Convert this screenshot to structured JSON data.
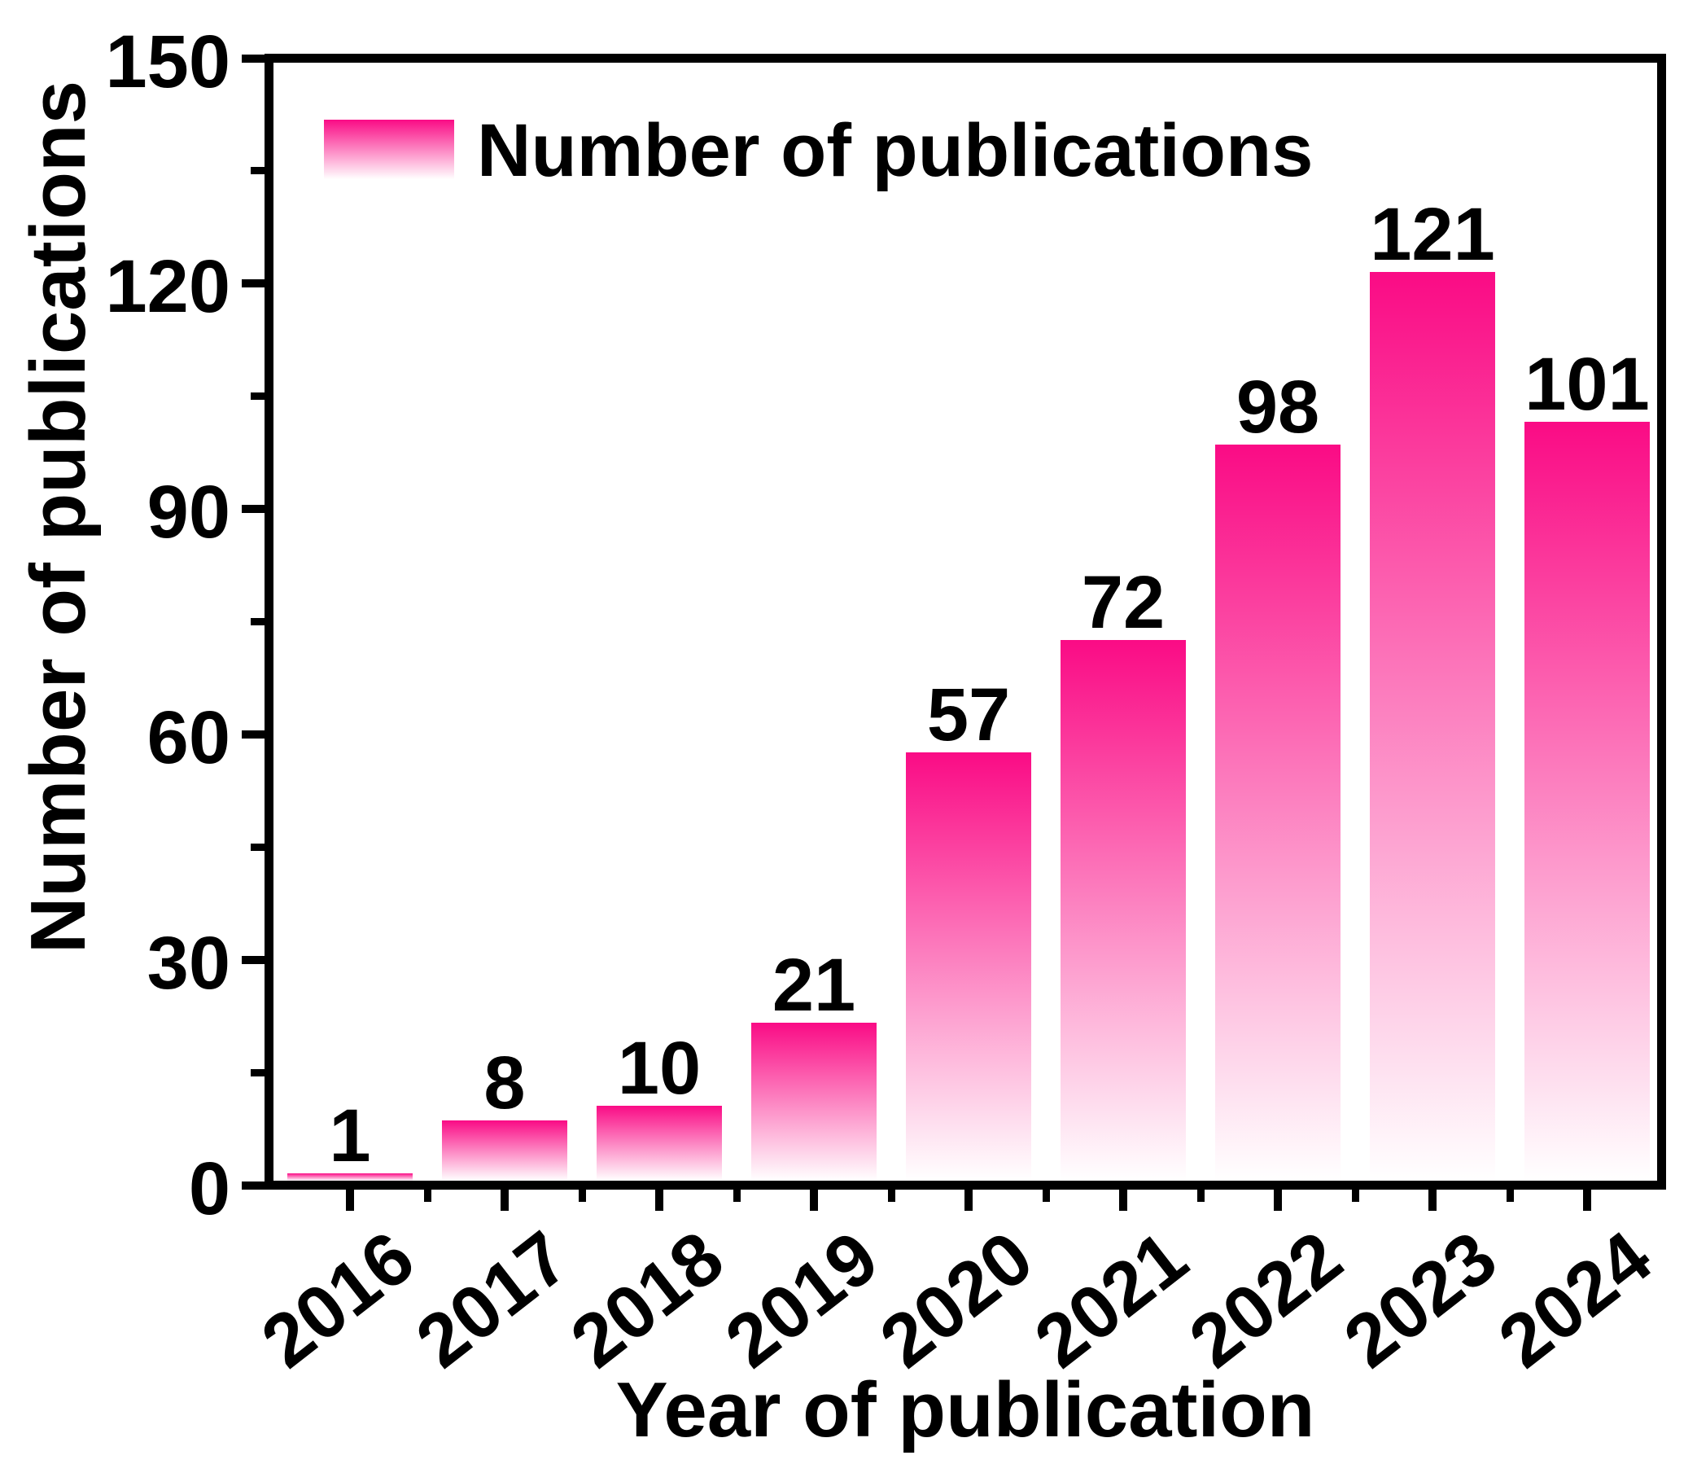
{
  "chart_data": {
    "type": "bar",
    "categories": [
      "2016",
      "2017",
      "2018",
      "2019",
      "2020",
      "2021",
      "2022",
      "2023",
      "2024"
    ],
    "values": [
      1,
      8,
      10,
      21,
      57,
      72,
      98,
      121,
      101
    ],
    "value_labels": [
      "1",
      "8",
      "10",
      "21",
      "57",
      "72",
      "98",
      "121",
      "101"
    ],
    "title": "",
    "xlabel": "Year of publication",
    "ylabel": "Number of publications",
    "ylim": [
      0,
      150
    ],
    "yticks": [
      0,
      30,
      60,
      90,
      120,
      150
    ],
    "ytick_labels": [
      "0",
      "30",
      "60",
      "90",
      "120",
      "150"
    ],
    "y_minor_ticks": [
      15,
      45,
      75,
      105,
      135
    ],
    "grid": false,
    "legend": {
      "label": "Number of publications",
      "position": "top-left-inside"
    },
    "colors": {
      "bar_gradient_top": "#FA0B85",
      "bar_gradient_bottom": "#FFFFFF",
      "axis": "#000000",
      "text": "#000000",
      "background": "#FFFFFF"
    }
  }
}
